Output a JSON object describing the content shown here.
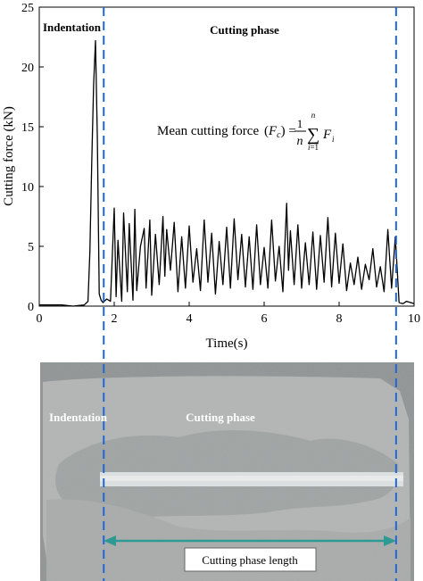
{
  "chart_data": {
    "type": "line",
    "xlabel": "Time(s)",
    "ylabel": "Cutting force (kN)",
    "xlim": [
      0,
      10
    ],
    "ylim": [
      0,
      25
    ],
    "xticks": [
      "0",
      "2",
      "4",
      "6",
      "8",
      "10"
    ],
    "yticks": [
      "0",
      "5",
      "10",
      "15",
      "20",
      "25"
    ],
    "grid": false,
    "series": [
      {
        "x": [
          0,
          0.3,
          0.6,
          0.9,
          1.2,
          1.3,
          1.35,
          1.4,
          1.45,
          1.5,
          1.55,
          1.6,
          1.65,
          1.7,
          1.8,
          1.9,
          2.0,
          2.05,
          2.1,
          2.2,
          2.25,
          2.35,
          2.4,
          2.5,
          2.55,
          2.6,
          2.7,
          2.8,
          2.85,
          2.95,
          3.0,
          3.1,
          3.2,
          3.3,
          3.35,
          3.4,
          3.5,
          3.6,
          3.7,
          3.8,
          3.9,
          4.0,
          4.1,
          4.2,
          4.3,
          4.4,
          4.5,
          4.6,
          4.7,
          4.8,
          4.9,
          5.0,
          5.1,
          5.2,
          5.3,
          5.4,
          5.5,
          5.6,
          5.7,
          5.8,
          5.9,
          6.0,
          6.1,
          6.2,
          6.3,
          6.4,
          6.5,
          6.6,
          6.65,
          6.7,
          6.8,
          6.9,
          7.0,
          7.1,
          7.2,
          7.3,
          7.4,
          7.5,
          7.6,
          7.7,
          7.8,
          7.9,
          8.0,
          8.1,
          8.2,
          8.3,
          8.4,
          8.5,
          8.6,
          8.7,
          8.8,
          8.9,
          9.0,
          9.1,
          9.2,
          9.3,
          9.4,
          9.5,
          9.6,
          9.7,
          9.8,
          10.0
        ],
        "y": [
          0.1,
          0.1,
          0.1,
          0.0,
          0.1,
          0.4,
          4.5,
          12.0,
          18.5,
          22.2,
          14.0,
          1.0,
          0.5,
          0.3,
          0.6,
          0.4,
          8.2,
          0.8,
          5.5,
          0.4,
          7.8,
          1.2,
          6.9,
          0.5,
          8.1,
          1.3,
          5.0,
          6.5,
          1.5,
          7.2,
          0.9,
          6.0,
          1.8,
          7.5,
          2.5,
          6.4,
          3.0,
          7.0,
          1.2,
          5.8,
          1.5,
          6.7,
          2.0,
          4.8,
          1.3,
          7.2,
          2.0,
          6.1,
          1.0,
          5.4,
          1.8,
          6.6,
          1.5,
          7.3,
          2.2,
          6.0,
          1.6,
          5.8,
          1.4,
          6.8,
          1.8,
          4.9,
          1.5,
          7.2,
          2.1,
          5.0,
          1.2,
          8.6,
          3.0,
          6.3,
          1.8,
          6.8,
          1.5,
          5.3,
          1.8,
          6.2,
          1.4,
          5.9,
          2.0,
          7.4,
          1.6,
          6.1,
          1.9,
          5.2,
          1.3,
          3.6,
          1.8,
          4.1,
          1.4,
          3.5,
          2.2,
          4.8,
          1.6,
          3.3,
          1.2,
          6.4,
          1.5,
          5.8,
          0.3,
          0.2,
          0.4,
          0.2
        ]
      }
    ],
    "annotations": {
      "indentation_label": "Indentation",
      "cutting_phase_label": "Cutting phase",
      "mean_force_label": "Mean cutting force",
      "phase_start_time": 1.72,
      "phase_end_time": 9.52
    }
  },
  "photo": {
    "indentation_label": "Indentation",
    "cutting_phase_label": "Cutting phase",
    "length_label": "Cutting phase length"
  }
}
